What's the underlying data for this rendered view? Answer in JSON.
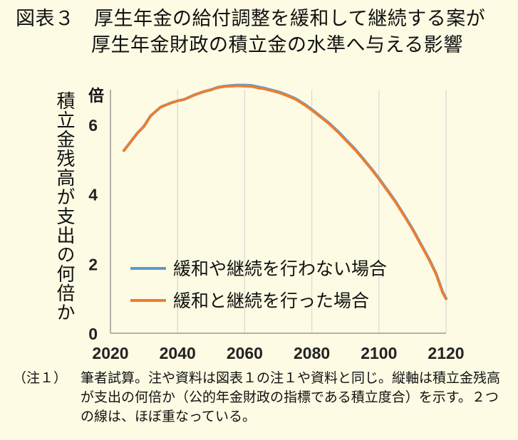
{
  "title": {
    "line1": "図表３　厚生年金の給付調整を緩和して継続する案が",
    "line2": "厚生年金財政の積立金の水準へ与える影響"
  },
  "note": {
    "head": "（注１）",
    "body": "筆者試算。注や資料は図表１の注１や資料と同じ。縦軸は積立金残高が支出の何倍か（公的年金財政の指標である積立度合）を示す。２つの線は、ほぼ重なっている。"
  },
  "chart_data": {
    "type": "line",
    "ylabel": "積立金残高が支出の何倍か",
    "yunit": "倍",
    "xlim": [
      2020,
      2120
    ],
    "ylim": [
      0,
      7
    ],
    "xticks": [
      "2020",
      "2040",
      "2060",
      "2080",
      "2100",
      "2120"
    ],
    "yticks": [
      "0",
      "2",
      "4",
      "6"
    ],
    "grid": "vertical",
    "legend_position": "lower-left",
    "series": [
      {
        "name": "緩和や継続を行わない場合",
        "color": "#5b9bd5",
        "x": [
          2024,
          2026,
          2028,
          2030,
          2032,
          2035,
          2038,
          2040,
          2042,
          2045,
          2048,
          2050,
          2052,
          2054,
          2056,
          2058,
          2060,
          2062,
          2064,
          2066,
          2068,
          2070,
          2072,
          2075,
          2078,
          2080,
          2082,
          2085,
          2088,
          2090,
          2093,
          2095,
          2098,
          2100,
          2103,
          2105,
          2108,
          2110,
          2112,
          2115,
          2117,
          2119,
          2120
        ],
        "y": [
          5.25,
          5.5,
          5.75,
          5.95,
          6.25,
          6.5,
          6.62,
          6.68,
          6.72,
          6.85,
          6.95,
          7.0,
          7.07,
          7.1,
          7.12,
          7.13,
          7.13,
          7.12,
          7.08,
          7.04,
          6.99,
          6.94,
          6.87,
          6.75,
          6.57,
          6.43,
          6.28,
          6.05,
          5.78,
          5.58,
          5.28,
          5.05,
          4.7,
          4.45,
          4.05,
          3.78,
          3.32,
          3.0,
          2.65,
          2.12,
          1.72,
          1.18,
          1.0
        ]
      },
      {
        "name": "緩和と継続を行った場合",
        "color": "#ed7d31",
        "x": [
          2024,
          2026,
          2028,
          2030,
          2032,
          2035,
          2038,
          2040,
          2042,
          2045,
          2048,
          2050,
          2052,
          2054,
          2056,
          2058,
          2060,
          2062,
          2064,
          2066,
          2068,
          2070,
          2072,
          2075,
          2078,
          2080,
          2082,
          2085,
          2088,
          2090,
          2093,
          2095,
          2098,
          2100,
          2103,
          2105,
          2108,
          2110,
          2112,
          2115,
          2117,
          2119,
          2120
        ],
        "y": [
          5.25,
          5.5,
          5.75,
          5.95,
          6.25,
          6.5,
          6.62,
          6.68,
          6.72,
          6.85,
          6.95,
          7.0,
          7.06,
          7.09,
          7.1,
          7.11,
          7.1,
          7.09,
          7.05,
          7.02,
          6.97,
          6.92,
          6.85,
          6.73,
          6.55,
          6.41,
          6.26,
          6.03,
          5.76,
          5.56,
          5.26,
          5.03,
          4.68,
          4.43,
          4.03,
          3.76,
          3.3,
          2.98,
          2.63,
          2.1,
          1.7,
          1.16,
          0.98
        ]
      }
    ]
  }
}
